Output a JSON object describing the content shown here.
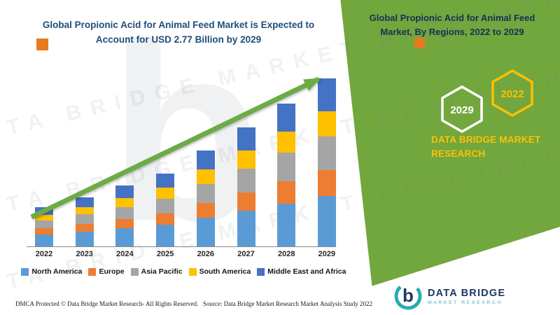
{
  "main": {
    "title": "Global Propionic Acid for Animal Feed Market is Expected to\nAccount for USD 2.77 Billion by 2029"
  },
  "panel": {
    "title": "Global Propionic Acid for Animal Feed\nMarket, By Regions, 2022 to 2029",
    "hexagons": [
      {
        "label": "2029",
        "outline": "#FFFFFF"
      },
      {
        "label": "2022",
        "outline": "#FFC000"
      }
    ],
    "brand_text": "DATA BRIDGE MARKET\nRESEARCH"
  },
  "chart_data": {
    "type": "bar",
    "stacked": true,
    "title": "",
    "xlabel": "",
    "ylabel": "",
    "axis_values_shown": false,
    "legend_position": "bottom",
    "note": "No y-axis scale shown; values are relative stacked-segment heights estimated from the image. A green upward trend arrow overlays the bars from 2022 to 2029.",
    "categories": [
      "2022",
      "2023",
      "2024",
      "2025",
      "2026",
      "2027",
      "2028",
      "2029"
    ],
    "series": [
      {
        "name": "North America",
        "color": "#5B9BD5",
        "values": [
          17,
          21,
          26,
          31,
          41,
          51,
          61,
          72
        ]
      },
      {
        "name": "Europe",
        "color": "#ED7D31",
        "values": [
          9,
          11,
          13,
          16,
          21,
          26,
          32,
          37
        ]
      },
      {
        "name": "Asia Pacific",
        "color": "#A5A5A5",
        "values": [
          11,
          14,
          17,
          21,
          27,
          34,
          41,
          48
        ]
      },
      {
        "name": "South America",
        "color": "#FFC000",
        "values": [
          8,
          10,
          13,
          16,
          21,
          26,
          30,
          36
        ]
      },
      {
        "name": "Middle East and Africa",
        "color": "#4472C4",
        "values": [
          11,
          14,
          18,
          20,
          27,
          33,
          40,
          47
        ]
      }
    ]
  },
  "footer": {
    "dmca": "DMCA Protected © Data Bridge Market Research- All Rights Reserved.",
    "source": "Source: Data Bridge Market Research Market Analysis Study 2022"
  },
  "logo": {
    "name": "DATA BRIDGE",
    "tagline": "MARKET RESEARCH"
  },
  "watermark": {
    "text": "DATA BRIDGE MARKET RESEARCH"
  },
  "colors": {
    "accent_green": "#72A73E",
    "arrow_green": "#6BAC45",
    "title_navy": "#1F4E79",
    "panel_navy": "#173056",
    "brand_yellow": "#FFC000",
    "decor_orange": "#E87A1E",
    "logo_teal": "#2FA8B5",
    "logo_navy": "#1F3864"
  }
}
